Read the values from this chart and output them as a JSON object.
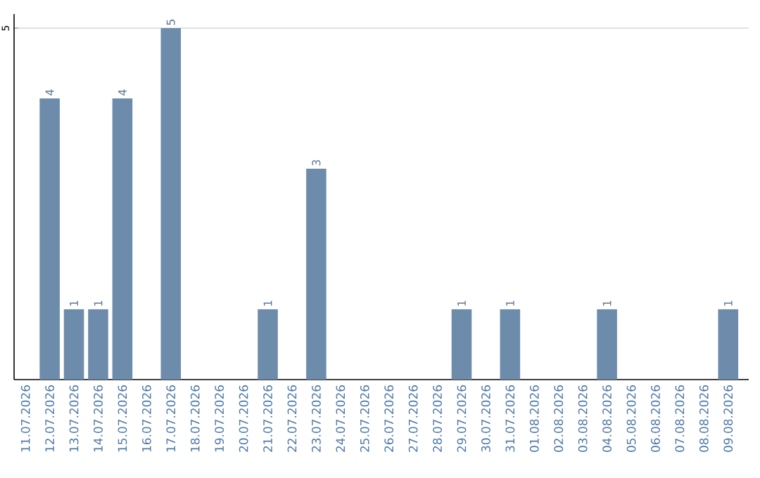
{
  "chart_data": {
    "type": "bar",
    "categories": [
      "11.07.2026",
      "12.07.2026",
      "13.07.2026",
      "14.07.2026",
      "15.07.2026",
      "16.07.2026",
      "17.07.2026",
      "18.07.2026",
      "19.07.2026",
      "20.07.2026",
      "21.07.2026",
      "22.07.2026",
      "23.07.2026",
      "24.07.2026",
      "25.07.2026",
      "26.07.2026",
      "27.07.2026",
      "28.07.2026",
      "29.07.2026",
      "30.07.2026",
      "31.07.2026",
      "01.08.2026",
      "02.08.2026",
      "03.08.2026",
      "04.08.2026",
      "05.08.2026",
      "06.08.2026",
      "07.08.2026",
      "08.08.2026",
      "09.08.2026"
    ],
    "values": [
      0,
      4,
      1,
      1,
      4,
      0,
      5,
      0,
      0,
      0,
      1,
      0,
      3,
      0,
      0,
      0,
      0,
      0,
      1,
      0,
      1,
      0,
      0,
      0,
      1,
      0,
      0,
      0,
      0,
      1
    ],
    "value_labels": [
      null,
      "4",
      "1",
      "1",
      "4",
      null,
      "5",
      null,
      null,
      null,
      "1",
      null,
      "3",
      null,
      null,
      null,
      null,
      null,
      "1",
      null,
      "1",
      null,
      null,
      null,
      "1",
      null,
      null,
      null,
      null,
      "1"
    ],
    "color": "#6d8cab",
    "ylim": [
      0,
      5.2
    ],
    "yticks": [
      5
    ],
    "grid": "y"
  }
}
